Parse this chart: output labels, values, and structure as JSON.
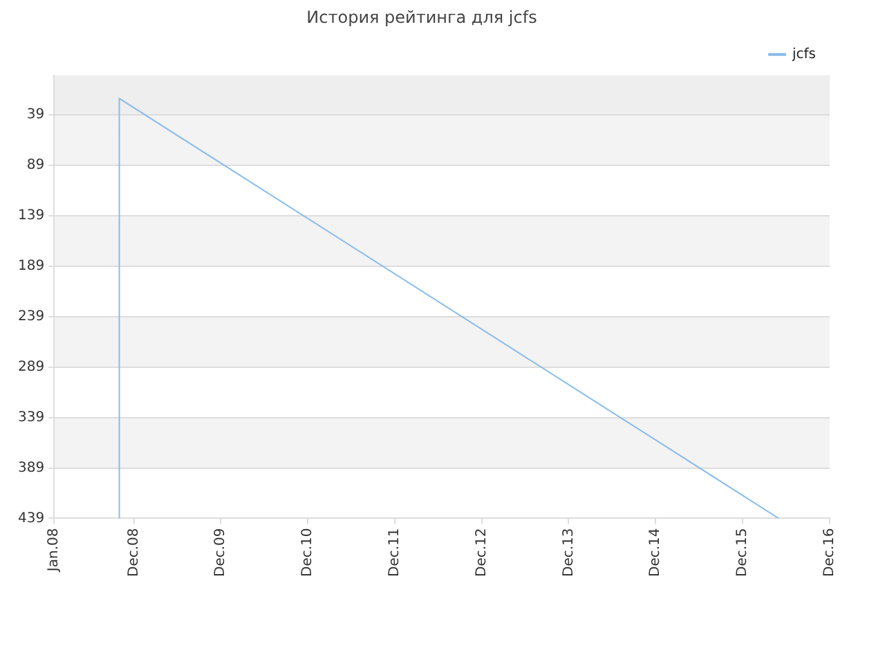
{
  "chart_data": {
    "type": "line",
    "title": "История рейтинга для jcfs",
    "x": [
      "2008-10",
      "2008-10",
      "2016-05"
    ],
    "series": [
      {
        "name": "jcfs",
        "color": "#88bbee",
        "values": [
          439,
          23,
          439
        ]
      }
    ],
    "xlim": [
      "2008-01",
      "2016-12"
    ],
    "xticks": [
      {
        "value": "2008-01",
        "label": "Jan.08"
      },
      {
        "value": "2008-12",
        "label": "Dec.08"
      },
      {
        "value": "2009-12",
        "label": "Dec.09"
      },
      {
        "value": "2010-12",
        "label": "Dec.10"
      },
      {
        "value": "2011-12",
        "label": "Dec.11"
      },
      {
        "value": "2012-12",
        "label": "Dec.12"
      },
      {
        "value": "2013-12",
        "label": "Dec.13"
      },
      {
        "value": "2014-12",
        "label": "Dec.14"
      },
      {
        "value": "2015-12",
        "label": "Dec.15"
      },
      {
        "value": "2016-12",
        "label": "Dec.16"
      }
    ],
    "ylim": [
      439,
      0
    ],
    "yticks": [
      39,
      89,
      139,
      189,
      239,
      289,
      339,
      389,
      439
    ],
    "bands": [
      {
        "axis": "y",
        "from": 0,
        "to": 39,
        "color": "#eeeeee"
      },
      {
        "axis": "y",
        "from": 39,
        "to": 89,
        "color": "#f3f3f3"
      },
      {
        "axis": "y",
        "from": 139,
        "to": 189,
        "color": "#f3f3f3"
      },
      {
        "axis": "y",
        "from": 239,
        "to": 289,
        "color": "#f3f3f3"
      },
      {
        "axis": "y",
        "from": 339,
        "to": 389,
        "color": "#f3f3f3"
      }
    ],
    "grid": "y",
    "legend": "top right",
    "marker": "none",
    "line_style": "solid"
  }
}
